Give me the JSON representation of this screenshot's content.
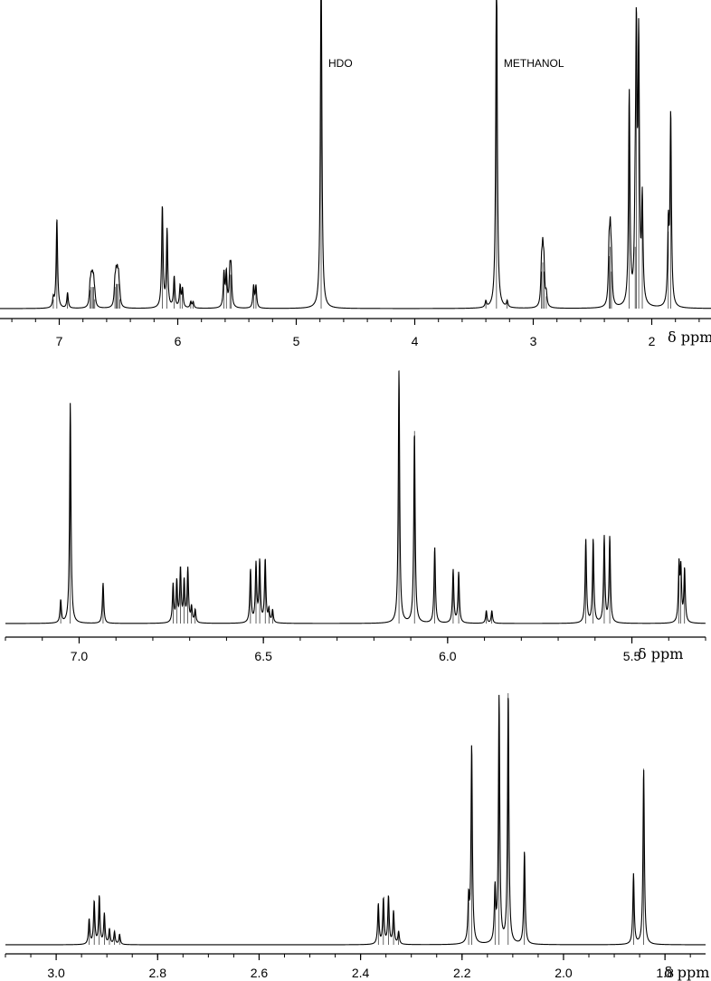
{
  "chart_data": [
    {
      "type": "line",
      "name": "full-spectrum",
      "unit_label": "δ ppm",
      "xlim": [
        7.5,
        1.5
      ],
      "x_reversed": true,
      "ticks": [
        {
          "v": 7,
          "label": "7"
        },
        {
          "v": 6,
          "label": "6"
        },
        {
          "v": 5,
          "label": "5"
        },
        {
          "v": 4,
          "label": "4"
        },
        {
          "v": 3,
          "label": "3"
        },
        {
          "v": 2,
          "label": "2"
        }
      ],
      "minor_step": 0.2,
      "annotations": [
        {
          "text": "HDO",
          "x": 4.79
        },
        {
          "text": "METHANOL",
          "x": 3.31
        }
      ],
      "peaks": [
        {
          "x": 7.05,
          "h": 0.03
        },
        {
          "x": 7.02,
          "h": 0.29
        },
        {
          "x": 6.93,
          "h": 0.05
        },
        {
          "x": 6.74,
          "h": 0.06
        },
        {
          "x": 6.73,
          "h": 0.07
        },
        {
          "x": 6.72,
          "h": 0.07
        },
        {
          "x": 6.71,
          "h": 0.07
        },
        {
          "x": 6.7,
          "h": 0.03
        },
        {
          "x": 6.53,
          "h": 0.07
        },
        {
          "x": 6.52,
          "h": 0.08
        },
        {
          "x": 6.51,
          "h": 0.08
        },
        {
          "x": 6.5,
          "h": 0.08
        },
        {
          "x": 6.49,
          "h": 0.03
        },
        {
          "x": 6.13,
          "h": 0.33
        },
        {
          "x": 6.09,
          "h": 0.25
        },
        {
          "x": 6.03,
          "h": 0.1
        },
        {
          "x": 5.98,
          "h": 0.07
        },
        {
          "x": 5.96,
          "h": 0.06
        },
        {
          "x": 5.89,
          "h": 0.02
        },
        {
          "x": 5.87,
          "h": 0.02
        },
        {
          "x": 5.61,
          "h": 0.11
        },
        {
          "x": 5.59,
          "h": 0.11
        },
        {
          "x": 5.56,
          "h": 0.11
        },
        {
          "x": 5.55,
          "h": 0.11
        },
        {
          "x": 5.36,
          "h": 0.07
        },
        {
          "x": 5.34,
          "h": 0.07
        },
        {
          "x": 4.79,
          "h": 1.2
        },
        {
          "x": 3.4,
          "h": 0.02
        },
        {
          "x": 3.31,
          "h": 1.2
        },
        {
          "x": 3.22,
          "h": 0.02
        },
        {
          "x": 2.93,
          "h": 0.12
        },
        {
          "x": 2.92,
          "h": 0.15
        },
        {
          "x": 2.91,
          "h": 0.12
        },
        {
          "x": 2.89,
          "h": 0.04
        },
        {
          "x": 2.36,
          "h": 0.17
        },
        {
          "x": 2.35,
          "h": 0.2
        },
        {
          "x": 2.34,
          "h": 0.12
        },
        {
          "x": 2.19,
          "h": 0.69
        },
        {
          "x": 2.14,
          "h": 0.2
        },
        {
          "x": 2.13,
          "h": 0.82
        },
        {
          "x": 2.11,
          "h": 0.82
        },
        {
          "x": 2.08,
          "h": 0.33
        },
        {
          "x": 1.86,
          "h": 0.25
        },
        {
          "x": 1.84,
          "h": 0.62
        }
      ]
    },
    {
      "type": "line",
      "name": "expansion-7.2-5.3",
      "unit_label": "δ ppm",
      "xlim": [
        7.2,
        5.3
      ],
      "x_reversed": true,
      "ticks": [
        {
          "v": 7.0,
          "label": "7.0"
        },
        {
          "v": 6.5,
          "label": "6.5"
        },
        {
          "v": 6.0,
          "label": "6.0"
        },
        {
          "v": 5.5,
          "label": "5.5"
        }
      ],
      "minor_step": 0.1,
      "annotations": [],
      "peaks": [
        {
          "x": 7.05,
          "h": 0.09
        },
        {
          "x": 7.024,
          "h": 0.87
        },
        {
          "x": 6.935,
          "h": 0.16
        },
        {
          "x": 6.745,
          "h": 0.15
        },
        {
          "x": 6.735,
          "h": 0.16
        },
        {
          "x": 6.725,
          "h": 0.21
        },
        {
          "x": 6.715,
          "h": 0.16
        },
        {
          "x": 6.705,
          "h": 0.21
        },
        {
          "x": 6.695,
          "h": 0.06
        },
        {
          "x": 6.685,
          "h": 0.05
        },
        {
          "x": 6.535,
          "h": 0.21
        },
        {
          "x": 6.52,
          "h": 0.23
        },
        {
          "x": 6.51,
          "h": 0.24
        },
        {
          "x": 6.495,
          "h": 0.25
        },
        {
          "x": 6.485,
          "h": 0.05
        },
        {
          "x": 6.475,
          "h": 0.05
        },
        {
          "x": 6.132,
          "h": 1.0
        },
        {
          "x": 6.09,
          "h": 0.76
        },
        {
          "x": 6.035,
          "h": 0.3
        },
        {
          "x": 5.985,
          "h": 0.21
        },
        {
          "x": 5.97,
          "h": 0.2
        },
        {
          "x": 5.895,
          "h": 0.05
        },
        {
          "x": 5.88,
          "h": 0.05
        },
        {
          "x": 5.625,
          "h": 0.33
        },
        {
          "x": 5.605,
          "h": 0.33
        },
        {
          "x": 5.575,
          "h": 0.34
        },
        {
          "x": 5.56,
          "h": 0.34
        },
        {
          "x": 5.372,
          "h": 0.22
        },
        {
          "x": 5.367,
          "h": 0.2
        },
        {
          "x": 5.357,
          "h": 0.21
        }
      ]
    },
    {
      "type": "line",
      "name": "expansion-3.1-1.7",
      "unit_label": "δ ppm",
      "xlim": [
        3.1,
        1.72
      ],
      "x_reversed": true,
      "ticks": [
        {
          "v": 3.0,
          "label": "3.0"
        },
        {
          "v": 2.8,
          "label": "2.8"
        },
        {
          "v": 2.6,
          "label": "2.6"
        },
        {
          "v": 2.4,
          "label": "2.4"
        },
        {
          "v": 2.2,
          "label": "2.2"
        },
        {
          "v": 2.0,
          "label": "2.0"
        },
        {
          "v": 1.8,
          "label": "1.8"
        }
      ],
      "minor_step": 0.05,
      "annotations": [],
      "peaks": [
        {
          "x": 2.935,
          "h": 0.1
        },
        {
          "x": 2.925,
          "h": 0.17
        },
        {
          "x": 2.915,
          "h": 0.19
        },
        {
          "x": 2.905,
          "h": 0.12
        },
        {
          "x": 2.895,
          "h": 0.06
        },
        {
          "x": 2.885,
          "h": 0.05
        },
        {
          "x": 2.875,
          "h": 0.04
        },
        {
          "x": 2.365,
          "h": 0.16
        },
        {
          "x": 2.355,
          "h": 0.18
        },
        {
          "x": 2.345,
          "h": 0.19
        },
        {
          "x": 2.335,
          "h": 0.13
        },
        {
          "x": 2.325,
          "h": 0.05
        },
        {
          "x": 2.187,
          "h": 0.17
        },
        {
          "x": 2.181,
          "h": 0.79
        },
        {
          "x": 2.135,
          "h": 0.21
        },
        {
          "x": 2.127,
          "h": 0.98
        },
        {
          "x": 2.109,
          "h": 1.0
        },
        {
          "x": 2.077,
          "h": 0.37
        },
        {
          "x": 1.862,
          "h": 0.28
        },
        {
          "x": 1.842,
          "h": 0.7
        }
      ]
    }
  ]
}
